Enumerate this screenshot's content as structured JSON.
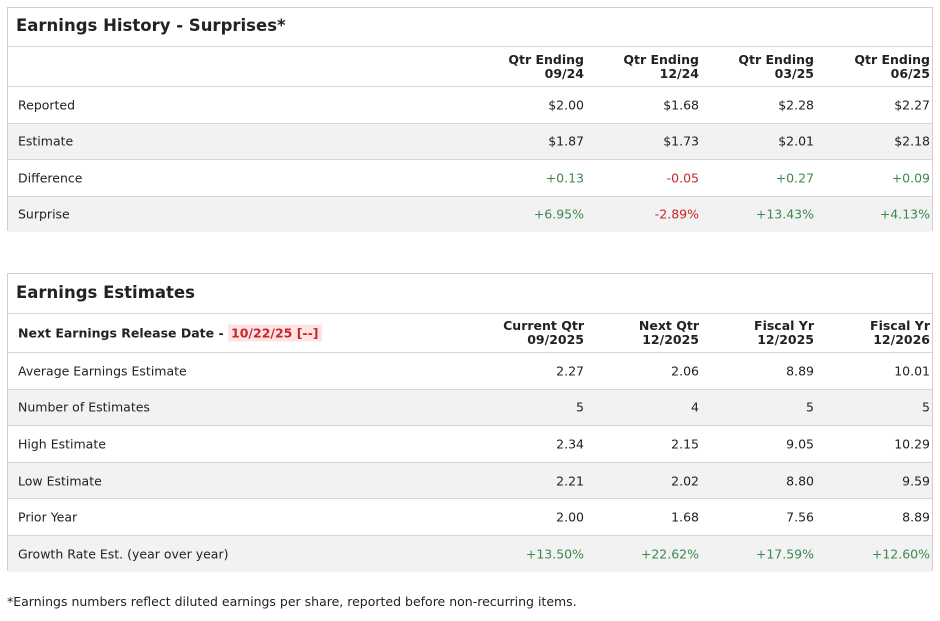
{
  "surprises": {
    "title": "Earnings History - Surprises*",
    "columns": [
      {
        "top": "Qtr Ending",
        "bottom": "09/24"
      },
      {
        "top": "Qtr Ending",
        "bottom": "12/24"
      },
      {
        "top": "Qtr Ending",
        "bottom": "03/25"
      },
      {
        "top": "Qtr Ending",
        "bottom": "06/25"
      }
    ],
    "rows": [
      {
        "label": "Reported",
        "values": [
          "$2.00",
          "$1.68",
          "$2.28",
          "$2.27"
        ]
      },
      {
        "label": "Estimate",
        "values": [
          "$1.87",
          "$1.73",
          "$2.01",
          "$2.18"
        ]
      },
      {
        "label": "Difference",
        "values": [
          "+0.13",
          "-0.05",
          "+0.27",
          "+0.09"
        ]
      },
      {
        "label": "Surprise",
        "values": [
          "+6.95%",
          "-2.89%",
          "+13.43%",
          "+4.13%"
        ]
      }
    ]
  },
  "estimates": {
    "title": "Earnings Estimates",
    "release_label": "Next Earnings Release Date -",
    "release_date": "10/22/25 [--]",
    "columns": [
      {
        "top": "Current Qtr",
        "bottom": "09/2025"
      },
      {
        "top": "Next Qtr",
        "bottom": "12/2025"
      },
      {
        "top": "Fiscal Yr",
        "bottom": "12/2025"
      },
      {
        "top": "Fiscal Yr",
        "bottom": "12/2026"
      }
    ],
    "rows": [
      {
        "label": "Average Earnings Estimate",
        "values": [
          "2.27",
          "2.06",
          "8.89",
          "10.01"
        ]
      },
      {
        "label": "Number of Estimates",
        "values": [
          "5",
          "4",
          "5",
          "5"
        ]
      },
      {
        "label": "High Estimate",
        "values": [
          "2.34",
          "2.15",
          "9.05",
          "10.29"
        ]
      },
      {
        "label": "Low Estimate",
        "values": [
          "2.21",
          "2.02",
          "8.80",
          "9.59"
        ]
      },
      {
        "label": "Prior Year",
        "values": [
          "2.00",
          "1.68",
          "7.56",
          "8.89"
        ]
      },
      {
        "label": "Growth Rate Est. (year over year)",
        "values": [
          "+13.50%",
          "+22.62%",
          "+17.59%",
          "+12.60%"
        ]
      }
    ]
  },
  "footnote": "*Earnings numbers reflect diluted earnings per share, reported before non-recurring items."
}
